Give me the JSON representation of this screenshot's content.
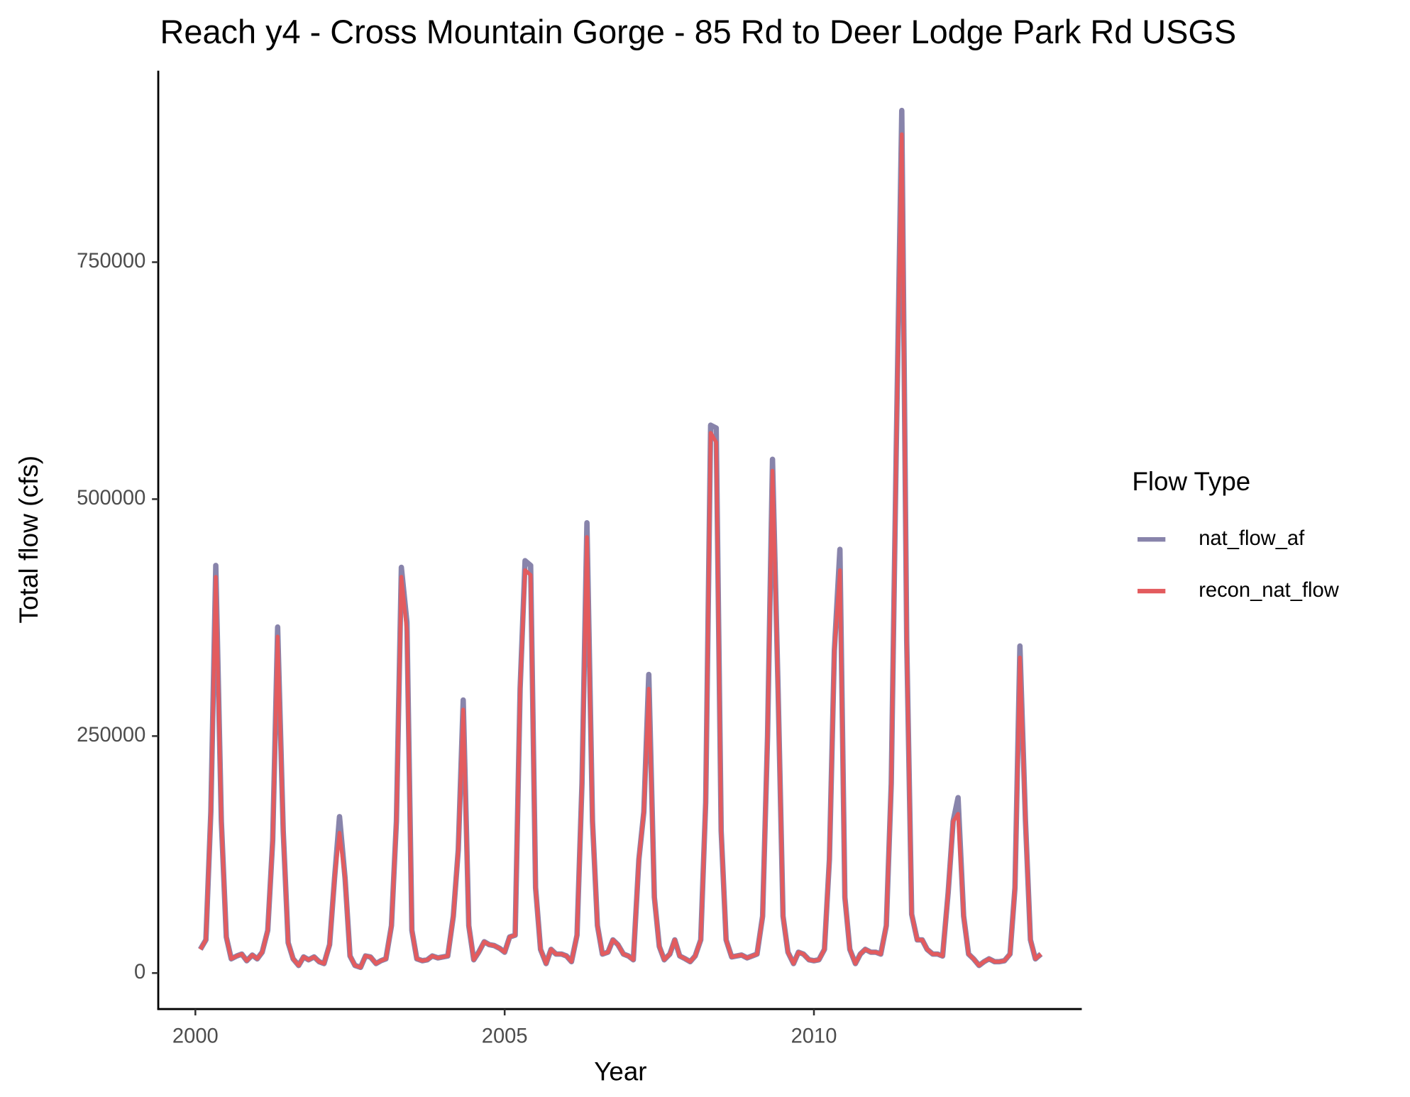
{
  "chart_data": {
    "type": "line",
    "title": "Reach y4 - Cross Mountain Gorge - 85 Rd to Deer Lodge Park Rd USGS",
    "x_label": "Year",
    "y_label": "Total flow (cfs)",
    "legend_title": "Flow Type",
    "legend_position": "right",
    "x": [
      2000.08,
      2000.17,
      2000.25,
      2000.33,
      2000.42,
      2000.5,
      2000.58,
      2000.67,
      2000.75,
      2000.83,
      2000.92,
      2001,
      2001.08,
      2001.17,
      2001.25,
      2001.33,
      2001.42,
      2001.5,
      2001.58,
      2001.67,
      2001.75,
      2001.83,
      2001.92,
      2002,
      2002.08,
      2002.17,
      2002.25,
      2002.33,
      2002.42,
      2002.5,
      2002.58,
      2002.67,
      2002.75,
      2002.83,
      2002.92,
      2003,
      2003.08,
      2003.17,
      2003.25,
      2003.33,
      2003.42,
      2003.5,
      2003.58,
      2003.67,
      2003.75,
      2003.83,
      2003.92,
      2004,
      2004.08,
      2004.17,
      2004.25,
      2004.33,
      2004.42,
      2004.5,
      2004.58,
      2004.67,
      2004.75,
      2004.83,
      2004.92,
      2005,
      2005.08,
      2005.17,
      2005.25,
      2005.33,
      2005.42,
      2005.5,
      2005.58,
      2005.67,
      2005.75,
      2005.83,
      2005.92,
      2006,
      2006.08,
      2006.17,
      2006.25,
      2006.33,
      2006.42,
      2006.5,
      2006.58,
      2006.67,
      2006.75,
      2006.83,
      2006.92,
      2007,
      2007.08,
      2007.17,
      2007.25,
      2007.33,
      2007.42,
      2007.5,
      2007.58,
      2007.67,
      2007.75,
      2007.83,
      2007.92,
      2008,
      2008.08,
      2008.17,
      2008.25,
      2008.33,
      2008.42,
      2008.5,
      2008.58,
      2008.67,
      2008.75,
      2008.83,
      2008.92,
      2009,
      2009.08,
      2009.17,
      2009.25,
      2009.33,
      2009.42,
      2009.5,
      2009.58,
      2009.67,
      2009.75,
      2009.83,
      2009.92,
      2010,
      2010.08,
      2010.17,
      2010.25,
      2010.33,
      2010.42,
      2010.5,
      2010.58,
      2010.67,
      2010.75,
      2010.83,
      2010.92,
      2011,
      2011.08,
      2011.17,
      2011.25,
      2011.33,
      2011.42,
      2011.5,
      2011.58,
      2011.67,
      2011.75,
      2011.83,
      2011.92,
      2012,
      2012.08,
      2012.17,
      2012.25,
      2012.33,
      2012.42,
      2012.5,
      2012.58,
      2012.67,
      2012.75,
      2012.83,
      2012.92,
      2013,
      2013.08,
      2013.17,
      2013.25,
      2013.33,
      2013.42,
      2013.5,
      2013.58,
      2013.67
    ],
    "series": [
      {
        "name": "nat_flow_af",
        "color": "#8884ab",
        "values": [
          25000,
          35000,
          170000,
          430000,
          160000,
          38000,
          15000,
          18000,
          20000,
          13000,
          19000,
          15000,
          22000,
          45000,
          140000,
          365000,
          150000,
          32000,
          15000,
          8000,
          17000,
          14000,
          17000,
          12000,
          10000,
          30000,
          100000,
          165000,
          100000,
          18000,
          8000,
          6000,
          18000,
          17000,
          10000,
          13000,
          15000,
          50000,
          160000,
          428000,
          370000,
          45000,
          15000,
          13000,
          14000,
          18000,
          16000,
          17000,
          18000,
          60000,
          130000,
          288000,
          50000,
          14000,
          22000,
          33000,
          30000,
          29000,
          26000,
          22000,
          38000,
          40000,
          300000,
          435000,
          430000,
          90000,
          25000,
          10000,
          25000,
          20000,
          20000,
          18000,
          12000,
          40000,
          200000,
          475000,
          160000,
          50000,
          20000,
          22000,
          35000,
          30000,
          20000,
          18000,
          14000,
          120000,
          170000,
          315000,
          80000,
          28000,
          14000,
          20000,
          35000,
          18000,
          15000,
          12000,
          18000,
          35000,
          180000,
          578000,
          575000,
          150000,
          35000,
          17000,
          18000,
          19000,
          16000,
          18000,
          20000,
          60000,
          250000,
          542000,
          300000,
          60000,
          22000,
          10000,
          22000,
          20000,
          14000,
          13000,
          14000,
          25000,
          120000,
          340000,
          447000,
          80000,
          25000,
          10000,
          20000,
          25000,
          22000,
          22000,
          20000,
          50000,
          200000,
          550000,
          910000,
          350000,
          62000,
          35000,
          35000,
          25000,
          20000,
          20000,
          18000,
          85000,
          160000,
          185000,
          60000,
          20000,
          15000,
          8000,
          12000,
          15000,
          12000,
          12000,
          13000,
          20000,
          90000,
          345000,
          160000,
          35000,
          15000,
          20000
        ]
      },
      {
        "name": "recon_nat_flow",
        "color": "#e35b5e",
        "values": [
          25000,
          35000,
          170000,
          418000,
          160000,
          38000,
          15000,
          18000,
          20000,
          13000,
          19000,
          15000,
          22000,
          45000,
          140000,
          355000,
          150000,
          32000,
          15000,
          8000,
          17000,
          14000,
          17000,
          12000,
          10000,
          30000,
          100000,
          148000,
          100000,
          18000,
          8000,
          6000,
          18000,
          17000,
          10000,
          13000,
          15000,
          50000,
          160000,
          418000,
          360000,
          45000,
          15000,
          13000,
          14000,
          18000,
          16000,
          17000,
          18000,
          60000,
          130000,
          278000,
          50000,
          14000,
          22000,
          33000,
          30000,
          29000,
          26000,
          22000,
          38000,
          40000,
          300000,
          425000,
          420000,
          90000,
          25000,
          10000,
          25000,
          20000,
          20000,
          18000,
          12000,
          40000,
          200000,
          460000,
          160000,
          50000,
          20000,
          22000,
          35000,
          30000,
          20000,
          18000,
          14000,
          120000,
          170000,
          300000,
          80000,
          28000,
          14000,
          20000,
          35000,
          18000,
          15000,
          12000,
          18000,
          35000,
          180000,
          570000,
          560000,
          150000,
          35000,
          17000,
          18000,
          19000,
          16000,
          18000,
          20000,
          60000,
          250000,
          530000,
          300000,
          60000,
          22000,
          10000,
          22000,
          20000,
          14000,
          13000,
          14000,
          25000,
          120000,
          340000,
          425000,
          80000,
          25000,
          10000,
          20000,
          25000,
          22000,
          22000,
          20000,
          50000,
          200000,
          550000,
          885000,
          350000,
          62000,
          35000,
          35000,
          25000,
          20000,
          20000,
          18000,
          85000,
          160000,
          168000,
          60000,
          20000,
          15000,
          8000,
          12000,
          15000,
          12000,
          12000,
          13000,
          20000,
          90000,
          333000,
          160000,
          35000,
          15000,
          20000
        ]
      }
    ],
    "xlim": [
      1999.4,
      2014.33
    ],
    "ylim": [
      -38000,
      952000
    ],
    "xticks": [
      2000,
      2005,
      2010
    ],
    "yticks": [
      0,
      250000,
      500000,
      750000
    ],
    "grid": false
  }
}
